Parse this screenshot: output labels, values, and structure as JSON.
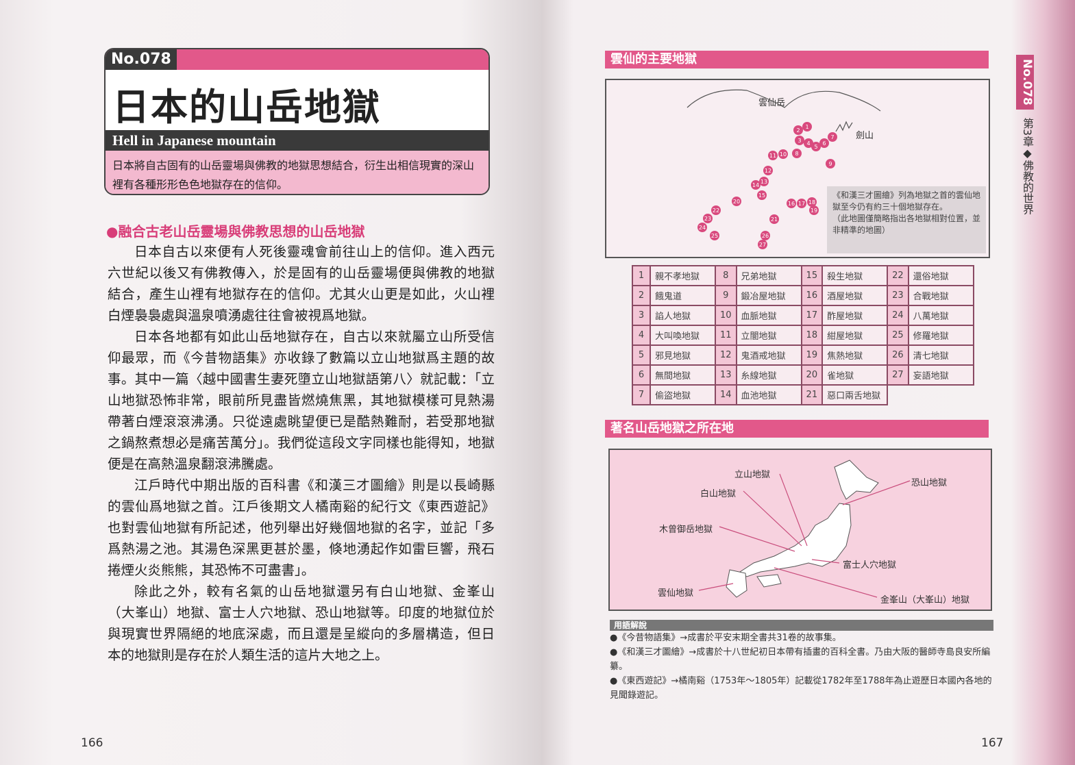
{
  "left": {
    "number": "No.078",
    "title": "日本的山岳地獄",
    "subtitle_en": "Hell in Japanese mountain",
    "summary": "日本將自古固有的山岳靈場與佛教的地獄思想結合，衍生出相信現實的深山裡有各種形形色色地獄存在的信仰。",
    "section_heading": "●融合古老山岳靈場與佛教思想的山岳地獄",
    "paragraphs": [
      "日本自古以來便有人死後靈魂會前往山上的信仰。進入西元六世紀以後又有佛教傳入，於是固有的山岳靈場便與佛教的地獄結合，產生山裡有地獄存在的信仰。尤其火山更是如此，火山裡白煙裊裊處與溫泉噴湧處往往會被視爲地獄。",
      "日本各地都有如此山岳地獄存在，自古以來就屬立山所受信仰最眾，而《今昔物語集》亦收錄了數篇以立山地獄爲主題的故事。其中一篇〈越中國書生妻死墮立山地獄語第八〉就記載：「立山地獄恐怖非常，眼前所見盡皆燃燒焦黑，其地獄模樣可見熱湯帶著白煙滾滾沸湧。只從遠處眺望便已是酷熱難耐，若受那地獄之鍋熬煮想必是痛苦萬分」。我們從這段文字同樣也能得知，地獄便是在高熱溫泉翻滾沸騰處。",
      "江戶時代中期出版的百科書《和漢三才圖繪》則是以長崎縣的雲仙爲地獄之首。江戶後期文人橘南谿的紀行文《東西遊記》也對雲仙地獄有所記述，他列舉出好幾個地獄的名字，並記「多爲熱湯之池。其湯色深黑更甚於墨，倏地湧起作如雷巨響，飛石捲煙火炎熊熊，其恐怖不可盡書」。",
      "除此之外，較有名氣的山岳地獄還另有白山地獄、金峯山（大峯山）地獄、富士人穴地獄、恐山地獄等。印度的地獄位於與現實世界隔絕的地底深處，而且還是呈縱向的多層構造，但日本的地獄則是存在於人類生活的這片大地之上。"
    ],
    "page_number": "166"
  },
  "right": {
    "unzen_heading": "雲仙的主要地獄",
    "unzen_label": "雲仙岳",
    "tsurugi_label": "劍山",
    "unzen_note": "《和漢三才圖繪》列為地獄之首的雲仙地獄至今仍有約三十個地獄存在。",
    "unzen_note2": "（此地圖僅簡略指出各地獄相對位置，並非精準的地圖）",
    "hells": [
      [
        "1",
        "親不孝地獄"
      ],
      [
        "2",
        "餓鬼道"
      ],
      [
        "3",
        "諂人地獄"
      ],
      [
        "4",
        "大叫喚地獄"
      ],
      [
        "5",
        "邪見地獄"
      ],
      [
        "6",
        "無間地獄"
      ],
      [
        "7",
        "偷盜地獄"
      ],
      [
        "8",
        "兄弟地獄"
      ],
      [
        "9",
        "鍛冶屋地獄"
      ],
      [
        "10",
        "血脈地獄"
      ],
      [
        "11",
        "立闇地獄"
      ],
      [
        "12",
        "鬼酒戒地獄"
      ],
      [
        "13",
        "糸線地獄"
      ],
      [
        "14",
        "血池地獄"
      ],
      [
        "15",
        "殺生地獄"
      ],
      [
        "16",
        "酒屋地獄"
      ],
      [
        "17",
        "酢屋地獄"
      ],
      [
        "18",
        "紺屋地獄"
      ],
      [
        "19",
        "焦熱地獄"
      ],
      [
        "20",
        "雀地獄"
      ],
      [
        "21",
        "惡口兩舌地獄"
      ],
      [
        "22",
        "還俗地獄"
      ],
      [
        "23",
        "合戰地獄"
      ],
      [
        "24",
        "八萬地獄"
      ],
      [
        "25",
        "修羅地獄"
      ],
      [
        "26",
        "清七地獄"
      ],
      [
        "27",
        "妄語地獄"
      ]
    ],
    "map_heading": "著名山岳地獄之所在地",
    "map_labels": {
      "tateyama": "立山地獄",
      "hakusan": "白山地獄",
      "ontake": "木曾御岳地獄",
      "unzen": "雲仙地獄",
      "osorezan": "恐山地獄",
      "fuji": "富士人穴地獄",
      "kinpu": "金峯山（大峯山）地獄"
    },
    "glossary_heading": "用語解說",
    "glossary": [
      "●《今昔物語集》→成書於平安末期全書共31卷的故事集。",
      "●《和漢三才圖繪》→成書於十八世紀初日本帶有插畫的百科全書。乃由大阪的醫師寺島良安所編纂。",
      "●《東西遊記》→橘南谿（1753年～1805年）記載從1782年至1788年為止遊歷日本國內各地的見聞錄遊記。"
    ],
    "tab_number": "No.078",
    "chapter": "第3章◆佛教的世界",
    "page_number": "167",
    "accent_color": "#e2588a"
  }
}
